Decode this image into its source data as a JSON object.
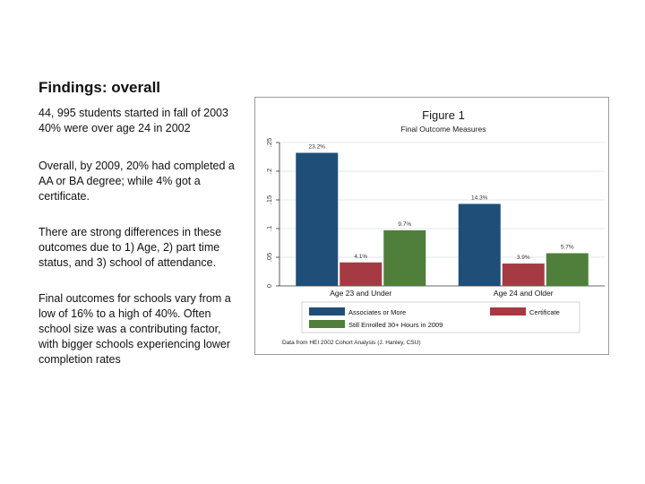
{
  "slide": {
    "title": "Findings: overall",
    "paragraphs": [
      [
        "44, 995 students started in fall of 2003",
        "40% were over age 24 in 2002"
      ],
      [
        "Overall, by 2009, 20% had completed a AA or BA degree; while 4% got a certificate."
      ],
      [
        "There are strong differences in these outcomes due to 1) Age, 2)  part time status, and 3) school of attendance."
      ],
      [
        "Final outcomes for schools vary from a low of 16% to a high of 40%. Often school size was a contributing factor, with bigger schools experiencing lower completion rates"
      ]
    ]
  },
  "chart_data": {
    "type": "bar",
    "title": "Figure 1",
    "subtitle": "Final Outcome Measures",
    "categories": [
      "Age 23 and Under",
      "Age 24 and Older"
    ],
    "series": [
      {
        "name": "Associates or More",
        "values": [
          0.232,
          0.143
        ],
        "labels": [
          "23.2%",
          "14.3%"
        ],
        "color": "#1f4e79"
      },
      {
        "name": "Certificate",
        "values": [
          0.041,
          0.039
        ],
        "labels": [
          "4.1%",
          "3.9%"
        ],
        "color": "#a63a42"
      },
      {
        "name": "Still Enrolled 30+ Hours in 2009",
        "values": [
          0.097,
          0.057
        ],
        "labels": [
          "9.7%",
          "5.7%"
        ],
        "color": "#4f7f3a"
      }
    ],
    "ylim": [
      0,
      0.25
    ],
    "yticks": [
      "0",
      ".05",
      ".1",
      ".15",
      ".2",
      ".25"
    ],
    "ytick_values": [
      0,
      0.05,
      0.1,
      0.15,
      0.2,
      0.25
    ],
    "grid": true,
    "legend_position": "bottom",
    "note": "Data from HEI 2002 Cohort Analysis (J. Hanley, CSU)"
  }
}
